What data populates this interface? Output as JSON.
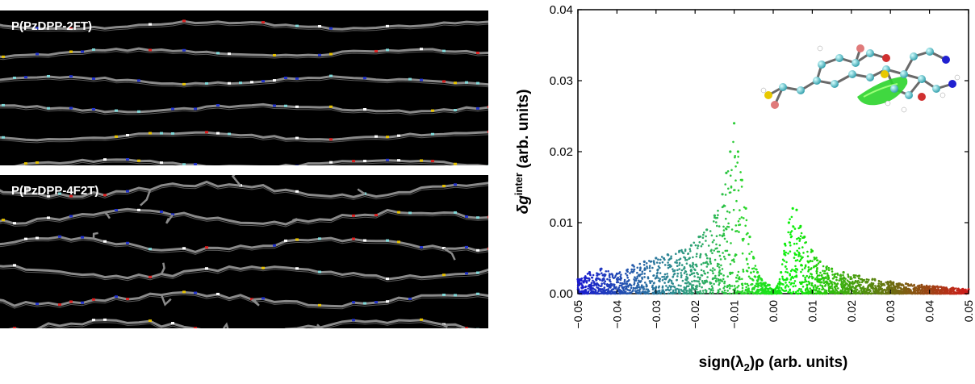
{
  "panels": {
    "top_label": "P(PzDPP-2FT)",
    "bottom_label": "P(PzDPP-4F2T)"
  },
  "chart_data": {
    "type": "scatter",
    "title": "",
    "xlabel_parts": {
      "pre": "sign(λ",
      "sub": "2",
      "post": ")ρ (arb. units)"
    },
    "ylabel_parts": {
      "pre": "δg",
      "sup": "inter",
      "post": " (arb. units)"
    },
    "xlim": [
      -0.05,
      0.05
    ],
    "ylim": [
      0.0,
      0.04
    ],
    "xticks": [
      -0.05,
      -0.04,
      -0.03,
      -0.02,
      -0.01,
      0.0,
      0.01,
      0.02,
      0.03,
      0.04,
      0.05
    ],
    "xtick_labels": [
      "−0.05",
      "−0.04",
      "−0.03",
      "−0.02",
      "−0.01",
      "0.00",
      "0.01",
      "0.02",
      "0.03",
      "0.04",
      "0.05"
    ],
    "yticks": [
      0.0,
      0.01,
      0.02,
      0.03,
      0.04
    ],
    "ytick_labels": [
      "0.00",
      "0.01",
      "0.02",
      "0.03",
      "0.04"
    ],
    "color_scale": [
      "#1a1ad0",
      "#2f8f8f",
      "#2bd42b",
      "#0bf00b",
      "#6b6e10",
      "#d01a1a"
    ],
    "series": [
      {
        "points": [
          [
            -0.05,
            0.002
          ],
          [
            -0.047,
            0.003
          ],
          [
            -0.044,
            0.0035
          ],
          [
            -0.04,
            0.0028
          ],
          [
            -0.036,
            0.004
          ],
          [
            -0.033,
            0.0045
          ],
          [
            -0.03,
            0.005
          ],
          [
            -0.027,
            0.0055
          ],
          [
            -0.024,
            0.006
          ],
          [
            -0.021,
            0.0068
          ],
          [
            -0.019,
            0.008
          ],
          [
            -0.017,
            0.009
          ],
          [
            -0.015,
            0.011
          ],
          [
            -0.013,
            0.014
          ],
          [
            -0.012,
            0.017
          ],
          [
            -0.011,
            0.02
          ],
          [
            -0.01,
            0.024
          ],
          [
            -0.009,
            0.02
          ],
          [
            -0.008,
            0.016
          ],
          [
            -0.007,
            0.012
          ],
          [
            -0.006,
            0.008
          ],
          [
            -0.005,
            0.005
          ],
          [
            -0.004,
            0.003
          ],
          [
            -0.003,
            0.002
          ],
          [
            -0.002,
            0.0015
          ],
          [
            -0.001,
            0.0012
          ],
          [
            0.0,
            0.0005
          ],
          [
            0.001,
            0.001
          ],
          [
            0.002,
            0.003
          ],
          [
            0.003,
            0.007
          ],
          [
            0.004,
            0.01
          ],
          [
            0.005,
            0.012
          ],
          [
            0.006,
            0.0118
          ],
          [
            0.007,
            0.0095
          ],
          [
            0.008,
            0.008
          ],
          [
            0.01,
            0.006
          ],
          [
            0.012,
            0.0045
          ],
          [
            0.015,
            0.0035
          ],
          [
            0.018,
            0.003
          ],
          [
            0.022,
            0.0025
          ],
          [
            0.026,
            0.002
          ],
          [
            0.03,
            0.0017
          ],
          [
            0.034,
            0.0014
          ],
          [
            0.038,
            0.0012
          ],
          [
            0.042,
            0.001
          ],
          [
            0.046,
            0.0008
          ],
          [
            0.05,
            0.0006
          ]
        ]
      }
    ]
  }
}
